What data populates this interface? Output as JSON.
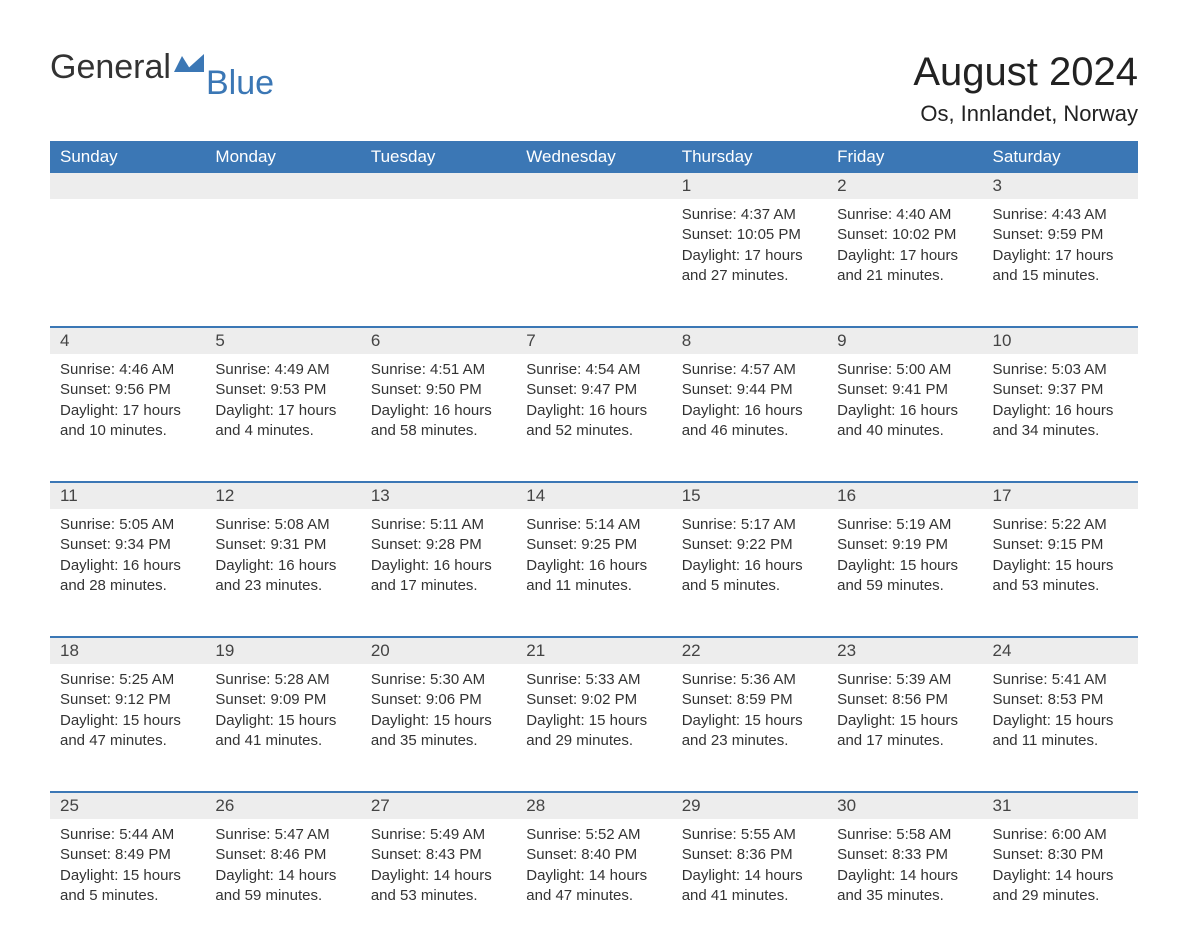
{
  "logo": {
    "text1": "General",
    "text2": "Blue"
  },
  "title": "August 2024",
  "subtitle": "Os, Innlandet, Norway",
  "colors": {
    "header_bg": "#3b77b5",
    "header_text": "#ffffff",
    "daynum_bg": "#ededed",
    "row_border": "#3b77b5",
    "body_text": "#333333",
    "page_bg": "#ffffff"
  },
  "weekdays": [
    "Sunday",
    "Monday",
    "Tuesday",
    "Wednesday",
    "Thursday",
    "Friday",
    "Saturday"
  ],
  "sunrise_label": "Sunrise",
  "sunset_label": "Sunset",
  "daylight_label": "Daylight",
  "hours_word": "hours",
  "minutes_word": "minutes",
  "and_word": "and",
  "weeks": [
    [
      null,
      null,
      null,
      null,
      {
        "d": "1",
        "sr": "4:37 AM",
        "ss": "10:05 PM",
        "dh": 17,
        "dm": 27
      },
      {
        "d": "2",
        "sr": "4:40 AM",
        "ss": "10:02 PM",
        "dh": 17,
        "dm": 21
      },
      {
        "d": "3",
        "sr": "4:43 AM",
        "ss": "9:59 PM",
        "dh": 17,
        "dm": 15
      }
    ],
    [
      {
        "d": "4",
        "sr": "4:46 AM",
        "ss": "9:56 PM",
        "dh": 17,
        "dm": 10
      },
      {
        "d": "5",
        "sr": "4:49 AM",
        "ss": "9:53 PM",
        "dh": 17,
        "dm": 4
      },
      {
        "d": "6",
        "sr": "4:51 AM",
        "ss": "9:50 PM",
        "dh": 16,
        "dm": 58
      },
      {
        "d": "7",
        "sr": "4:54 AM",
        "ss": "9:47 PM",
        "dh": 16,
        "dm": 52
      },
      {
        "d": "8",
        "sr": "4:57 AM",
        "ss": "9:44 PM",
        "dh": 16,
        "dm": 46
      },
      {
        "d": "9",
        "sr": "5:00 AM",
        "ss": "9:41 PM",
        "dh": 16,
        "dm": 40
      },
      {
        "d": "10",
        "sr": "5:03 AM",
        "ss": "9:37 PM",
        "dh": 16,
        "dm": 34
      }
    ],
    [
      {
        "d": "11",
        "sr": "5:05 AM",
        "ss": "9:34 PM",
        "dh": 16,
        "dm": 28
      },
      {
        "d": "12",
        "sr": "5:08 AM",
        "ss": "9:31 PM",
        "dh": 16,
        "dm": 23
      },
      {
        "d": "13",
        "sr": "5:11 AM",
        "ss": "9:28 PM",
        "dh": 16,
        "dm": 17
      },
      {
        "d": "14",
        "sr": "5:14 AM",
        "ss": "9:25 PM",
        "dh": 16,
        "dm": 11
      },
      {
        "d": "15",
        "sr": "5:17 AM",
        "ss": "9:22 PM",
        "dh": 16,
        "dm": 5
      },
      {
        "d": "16",
        "sr": "5:19 AM",
        "ss": "9:19 PM",
        "dh": 15,
        "dm": 59
      },
      {
        "d": "17",
        "sr": "5:22 AM",
        "ss": "9:15 PM",
        "dh": 15,
        "dm": 53
      }
    ],
    [
      {
        "d": "18",
        "sr": "5:25 AM",
        "ss": "9:12 PM",
        "dh": 15,
        "dm": 47
      },
      {
        "d": "19",
        "sr": "5:28 AM",
        "ss": "9:09 PM",
        "dh": 15,
        "dm": 41
      },
      {
        "d": "20",
        "sr": "5:30 AM",
        "ss": "9:06 PM",
        "dh": 15,
        "dm": 35
      },
      {
        "d": "21",
        "sr": "5:33 AM",
        "ss": "9:02 PM",
        "dh": 15,
        "dm": 29
      },
      {
        "d": "22",
        "sr": "5:36 AM",
        "ss": "8:59 PM",
        "dh": 15,
        "dm": 23
      },
      {
        "d": "23",
        "sr": "5:39 AM",
        "ss": "8:56 PM",
        "dh": 15,
        "dm": 17
      },
      {
        "d": "24",
        "sr": "5:41 AM",
        "ss": "8:53 PM",
        "dh": 15,
        "dm": 11
      }
    ],
    [
      {
        "d": "25",
        "sr": "5:44 AM",
        "ss": "8:49 PM",
        "dh": 15,
        "dm": 5
      },
      {
        "d": "26",
        "sr": "5:47 AM",
        "ss": "8:46 PM",
        "dh": 14,
        "dm": 59
      },
      {
        "d": "27",
        "sr": "5:49 AM",
        "ss": "8:43 PM",
        "dh": 14,
        "dm": 53
      },
      {
        "d": "28",
        "sr": "5:52 AM",
        "ss": "8:40 PM",
        "dh": 14,
        "dm": 47
      },
      {
        "d": "29",
        "sr": "5:55 AM",
        "ss": "8:36 PM",
        "dh": 14,
        "dm": 41
      },
      {
        "d": "30",
        "sr": "5:58 AM",
        "ss": "8:33 PM",
        "dh": 14,
        "dm": 35
      },
      {
        "d": "31",
        "sr": "6:00 AM",
        "ss": "8:30 PM",
        "dh": 14,
        "dm": 29
      }
    ]
  ]
}
